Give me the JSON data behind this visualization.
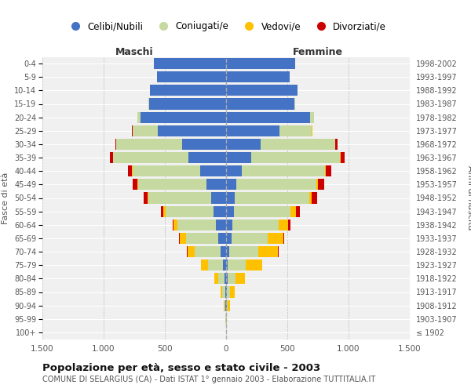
{
  "age_groups": [
    "100+",
    "95-99",
    "90-94",
    "85-89",
    "80-84",
    "75-79",
    "70-74",
    "65-69",
    "60-64",
    "55-59",
    "50-54",
    "45-49",
    "40-44",
    "35-39",
    "30-34",
    "25-29",
    "20-24",
    "15-19",
    "10-14",
    "5-9",
    "0-4"
  ],
  "birth_years": [
    "≤ 1902",
    "1903-1907",
    "1908-1912",
    "1913-1917",
    "1918-1922",
    "1923-1927",
    "1928-1932",
    "1933-1937",
    "1938-1942",
    "1943-1947",
    "1948-1952",
    "1953-1957",
    "1958-1962",
    "1963-1967",
    "1968-1972",
    "1973-1977",
    "1978-1982",
    "1983-1987",
    "1988-1992",
    "1993-1997",
    "1998-2002"
  ],
  "male_celibi": [
    0,
    2,
    4,
    8,
    12,
    25,
    45,
    65,
    85,
    105,
    125,
    160,
    210,
    310,
    360,
    560,
    700,
    630,
    620,
    565,
    590
  ],
  "male_coniugati": [
    0,
    3,
    10,
    22,
    55,
    125,
    210,
    260,
    310,
    390,
    510,
    560,
    555,
    610,
    535,
    205,
    22,
    4,
    2,
    0,
    0
  ],
  "male_vedovi": [
    0,
    1,
    6,
    16,
    32,
    52,
    62,
    52,
    32,
    16,
    6,
    4,
    3,
    1,
    0,
    0,
    0,
    0,
    0,
    0,
    0
  ],
  "male_divorziati": [
    0,
    0,
    0,
    0,
    0,
    0,
    3,
    6,
    12,
    22,
    32,
    42,
    32,
    26,
    12,
    6,
    3,
    0,
    0,
    0,
    0
  ],
  "female_celibi": [
    0,
    2,
    4,
    7,
    12,
    16,
    28,
    42,
    52,
    62,
    72,
    82,
    125,
    205,
    285,
    435,
    685,
    555,
    582,
    522,
    562
  ],
  "female_coniugati": [
    0,
    3,
    10,
    22,
    62,
    145,
    235,
    295,
    375,
    465,
    605,
    655,
    685,
    725,
    605,
    265,
    32,
    6,
    3,
    0,
    0
  ],
  "female_vedovi": [
    2,
    4,
    16,
    42,
    82,
    135,
    162,
    132,
    82,
    42,
    22,
    12,
    6,
    4,
    3,
    2,
    1,
    0,
    0,
    0,
    0
  ],
  "female_divorziati": [
    0,
    0,
    0,
    0,
    0,
    2,
    3,
    6,
    16,
    32,
    42,
    52,
    42,
    32,
    16,
    6,
    3,
    0,
    0,
    0,
    0
  ],
  "colors": {
    "celibi": "#4472c4",
    "coniugati": "#c5d9a0",
    "vedovi": "#ffc000",
    "divorziati": "#cc0000"
  },
  "legend_labels": [
    "Celibi/Nubili",
    "Coniugati/e",
    "Vedovi/e",
    "Divorziati/e"
  ],
  "title": "Popolazione per età, sesso e stato civile - 2003",
  "subtitle": "COMUNE DI SELARGIUS (CA) - Dati ISTAT 1° gennaio 2003 - Elaborazione TUTTITALIA.IT",
  "xlabel_left": "Maschi",
  "xlabel_right": "Femmine",
  "ylabel_left": "Fasce di età",
  "ylabel_right": "Anni di nascita",
  "xlim": 1500,
  "background_color": "#ffffff",
  "grid_color": "#cccccc",
  "xticks": [
    -1500,
    -1000,
    -500,
    0,
    500,
    1000,
    1500
  ],
  "xticklabels": [
    "1.500",
    "1.000",
    "500",
    "0",
    "500",
    "1.000",
    "1.500"
  ]
}
